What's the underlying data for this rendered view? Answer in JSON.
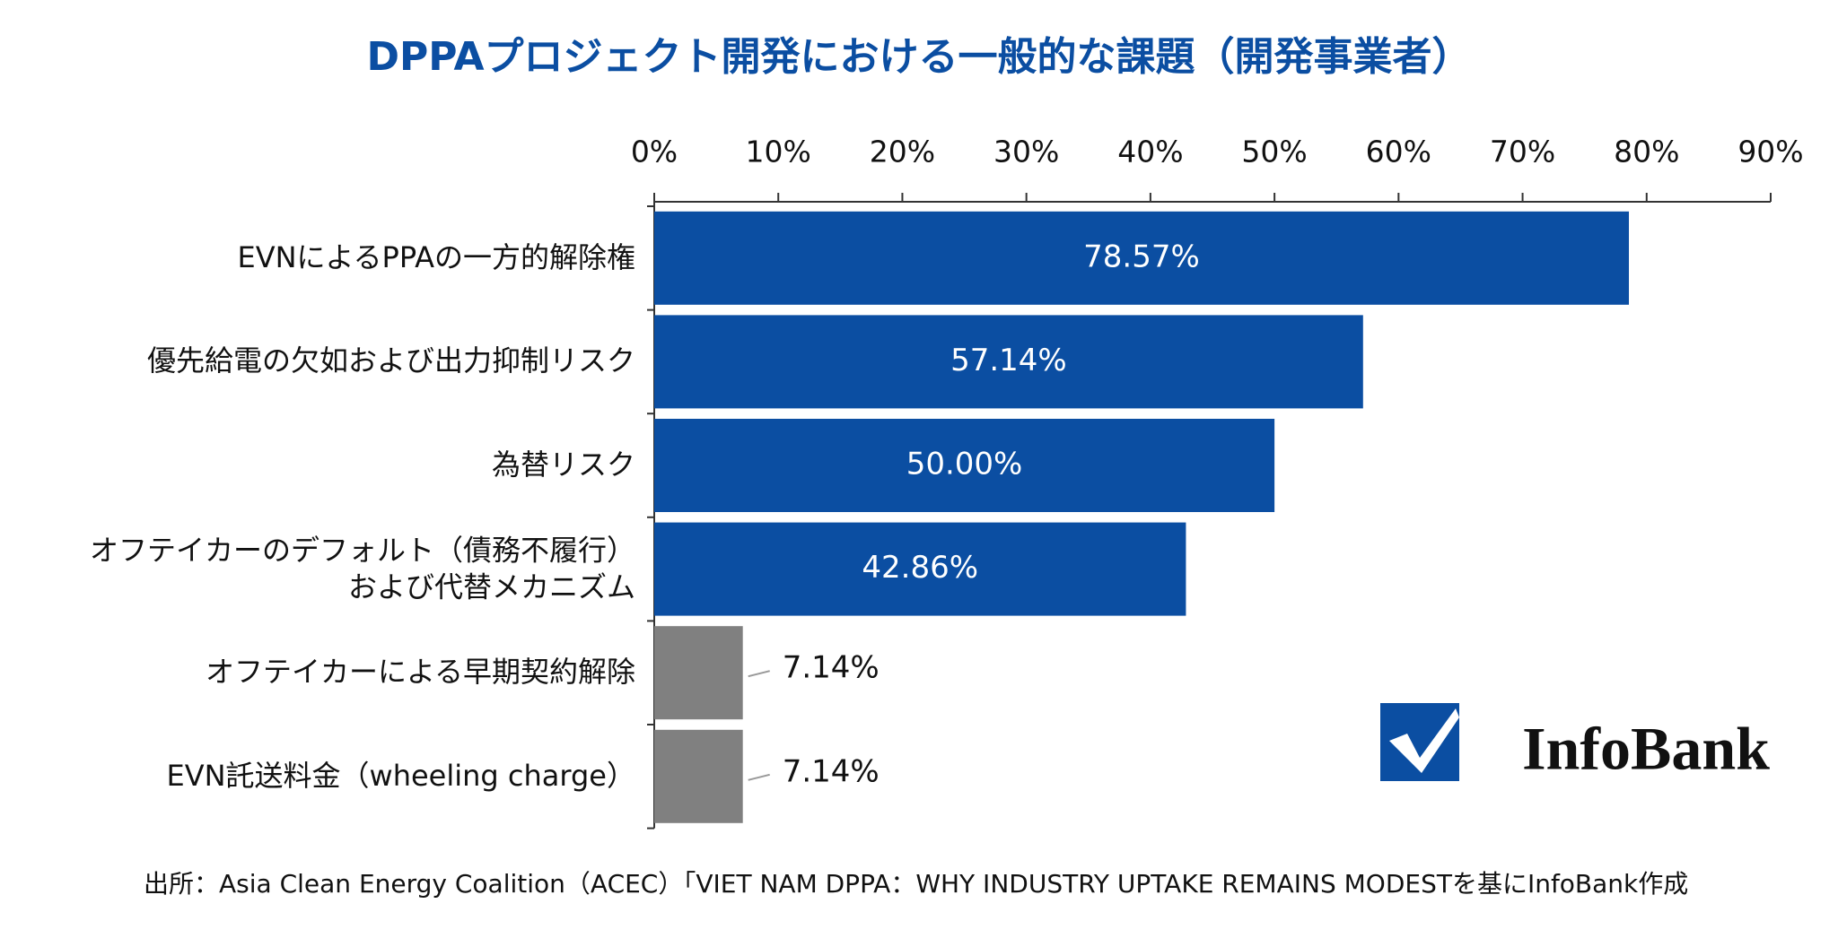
{
  "chart_data": {
    "type": "hbar",
    "title": "DPPAプロジェクト開発における一般的な課題（開発事業者）",
    "categories": [
      "EVNによるPPAの一方的解除権",
      "優先給電の欠如および出力抑制リスク",
      "為替リスク",
      "オフテイカーのデフォルト（債務不履行）\nおよび代替メカニズム",
      "オフテイカーによる早期契約解除",
      "EVN託送料金（wheeling charge）"
    ],
    "values": [
      78.57,
      57.14,
      50.0,
      42.86,
      7.14,
      7.14
    ],
    "value_labels": [
      "78.57%",
      "57.14%",
      "50.00%",
      "42.86%",
      "7.14%",
      "7.14%"
    ],
    "colors": [
      "#0b4ea2",
      "#0b4ea2",
      "#0b4ea2",
      "#0b4ea2",
      "#808080",
      "#808080"
    ],
    "xlim": [
      0,
      90
    ],
    "xticks": [
      {
        "value": 0,
        "label": "0%"
      },
      {
        "value": 10,
        "label": "10%"
      },
      {
        "value": 20,
        "label": "20%"
      },
      {
        "value": 30,
        "label": "30%"
      },
      {
        "value": 40,
        "label": "40%"
      },
      {
        "value": 50,
        "label": "50%"
      },
      {
        "value": 60,
        "label": "60%"
      },
      {
        "value": 70,
        "label": "70%"
      },
      {
        "value": 80,
        "label": "80%"
      },
      {
        "value": 90,
        "label": "90%"
      }
    ],
    "source": "出所：Asia Clean Energy Coalition（ACEC）「VIET NAM DPPA：WHY INDUSTRY UPTAKE REMAINS MODESTを基にInfoBank作成",
    "logo": "InfoBank"
  }
}
